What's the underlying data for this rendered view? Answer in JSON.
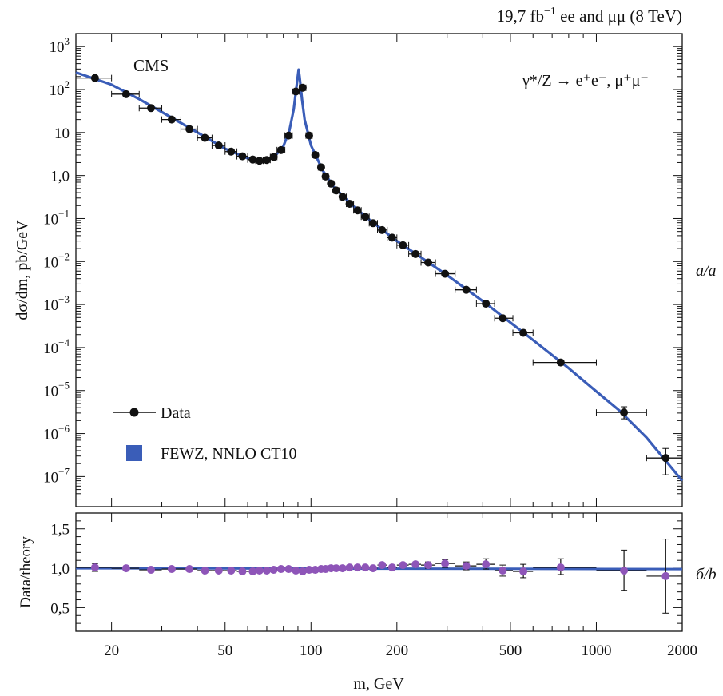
{
  "header": {
    "lumi_value": "19,7 fb",
    "lumi_exp": "−1",
    "lumi_rest": " ee and μμ (8 TeV)"
  },
  "labels": {
    "experiment": "CMS",
    "process": "γ*/Z → e⁺e⁻, μ⁺μ⁻",
    "panel_a": "a/a",
    "panel_b": "б/b"
  },
  "legend": {
    "data_label": "Data",
    "theory_label": "FEWZ, NNLO CT10"
  },
  "colors": {
    "theory_line": "#3a5db8",
    "data_marker": "#111111",
    "ratio_marker": "#8e55b8",
    "frame": "#111111"
  },
  "chart_data": [
    {
      "type": "line",
      "panel": "top",
      "ylabel": "dσ/dm, pb/GeV",
      "x_scale": "log",
      "y_scale": "log",
      "xlim": [
        15,
        2000
      ],
      "ylim": [
        2e-08,
        2000
      ],
      "y_tick_labels": [
        {
          "v": 1000,
          "base": "10",
          "exp": "3"
        },
        {
          "v": 100,
          "base": "10",
          "exp": "2"
        },
        {
          "v": 10,
          "base": "10",
          "exp": ""
        },
        {
          "v": 1,
          "base": "1,0",
          "exp": ""
        },
        {
          "v": 0.1,
          "base": "10",
          "exp": "−1"
        },
        {
          "v": 0.01,
          "base": "10",
          "exp": "−2"
        },
        {
          "v": 0.001,
          "base": "10",
          "exp": "−3"
        },
        {
          "v": 0.0001,
          "base": "10",
          "exp": "−4"
        },
        {
          "v": 1e-05,
          "base": "10",
          "exp": "−5"
        },
        {
          "v": 1e-06,
          "base": "10",
          "exp": "−6"
        },
        {
          "v": 1e-07,
          "base": "10",
          "exp": "−7"
        }
      ],
      "series": [
        {
          "name": "Data",
          "points": [
            {
              "x": 17.5,
              "y": 185,
              "xlo": 15,
              "xhi": 20
            },
            {
              "x": 22.5,
              "y": 78,
              "xlo": 20,
              "xhi": 25
            },
            {
              "x": 27.5,
              "y": 37,
              "xlo": 25,
              "xhi": 30
            },
            {
              "x": 32.5,
              "y": 20,
              "xlo": 30,
              "xhi": 35
            },
            {
              "x": 37.5,
              "y": 12,
              "xlo": 35,
              "xhi": 40
            },
            {
              "x": 42.5,
              "y": 7.5,
              "xlo": 40,
              "xhi": 45
            },
            {
              "x": 47.5,
              "y": 5,
              "xlo": 45,
              "xhi": 50
            },
            {
              "x": 52.5,
              "y": 3.6,
              "xlo": 50,
              "xhi": 55
            },
            {
              "x": 57.5,
              "y": 2.8,
              "xlo": 55,
              "xhi": 60
            },
            {
              "x": 62.5,
              "y": 2.35,
              "xlo": 60,
              "xhi": 64
            },
            {
              "x": 66,
              "y": 2.2,
              "xlo": 64,
              "xhi": 68
            },
            {
              "x": 70,
              "y": 2.3,
              "xlo": 68,
              "xhi": 72
            },
            {
              "x": 74,
              "y": 2.7,
              "xlo": 72,
              "xhi": 76
            },
            {
              "x": 78.5,
              "y": 3.9,
              "xlo": 76,
              "xhi": 81
            },
            {
              "x": 83.5,
              "y": 8.5,
              "xlo": 81,
              "xhi": 86
            },
            {
              "x": 88.5,
              "y": 90,
              "xlo": 86,
              "xhi": 91
            },
            {
              "x": 93.5,
              "y": 110,
              "xlo": 91,
              "xhi": 96
            },
            {
              "x": 98.5,
              "y": 8.5,
              "xlo": 96,
              "xhi": 101
            },
            {
              "x": 103.5,
              "y": 3,
              "xlo": 101,
              "xhi": 106
            },
            {
              "x": 108.5,
              "y": 1.55,
              "xlo": 106,
              "xhi": 110
            },
            {
              "x": 112.5,
              "y": 0.95,
              "xlo": 110,
              "xhi": 115
            },
            {
              "x": 117.5,
              "y": 0.65,
              "xlo": 115,
              "xhi": 120
            },
            {
              "x": 122.5,
              "y": 0.45,
              "xlo": 120,
              "xhi": 126
            },
            {
              "x": 129,
              "y": 0.32,
              "xlo": 126,
              "xhi": 133
            },
            {
              "x": 136.5,
              "y": 0.22,
              "xlo": 133,
              "xhi": 141
            },
            {
              "x": 145.5,
              "y": 0.155,
              "xlo": 141,
              "xhi": 150
            },
            {
              "x": 155,
              "y": 0.11,
              "xlo": 150,
              "xhi": 160
            },
            {
              "x": 165,
              "y": 0.078,
              "xlo": 160,
              "xhi": 171
            },
            {
              "x": 177.5,
              "y": 0.054,
              "xlo": 171,
              "xhi": 185
            },
            {
              "x": 192.5,
              "y": 0.036,
              "xlo": 185,
              "xhi": 200
            },
            {
              "x": 210,
              "y": 0.024,
              "xlo": 200,
              "xhi": 220
            },
            {
              "x": 232.5,
              "y": 0.015,
              "xlo": 220,
              "xhi": 243
            },
            {
              "x": 257.5,
              "y": 0.0095,
              "xlo": 243,
              "xhi": 273
            },
            {
              "x": 295,
              "y": 0.0052,
              "xlo": 273,
              "xhi": 320
            },
            {
              "x": 350,
              "y": 0.0022,
              "xlo": 320,
              "xhi": 380
            },
            {
              "x": 410,
              "y": 0.00105,
              "xlo": 380,
              "xhi": 440
            },
            {
              "x": 470,
              "y": 0.00048,
              "xlo": 440,
              "xhi": 510
            },
            {
              "x": 555,
              "y": 0.00022,
              "xlo": 510,
              "xhi": 600
            },
            {
              "x": 750,
              "y": 4.5e-05,
              "xlo": 600,
              "xhi": 1000
            },
            {
              "x": 1250,
              "y": 3.1e-06,
              "xlo": 1000,
              "xhi": 1500,
              "ylo": 2.2e-06,
              "yhi": 4.2e-06
            },
            {
              "x": 1750,
              "y": 2.7e-07,
              "xlo": 1500,
              "xhi": 2000,
              "ylo": 1.1e-07,
              "yhi": 4.5e-07
            }
          ]
        },
        {
          "name": "FEWZ, NNLO CT10",
          "points": [
            {
              "x": 15,
              "y": 250
            },
            {
              "x": 20,
              "y": 130
            },
            {
              "x": 25,
              "y": 60
            },
            {
              "x": 30,
              "y": 30
            },
            {
              "x": 40,
              "y": 10
            },
            {
              "x": 50,
              "y": 4.2
            },
            {
              "x": 60,
              "y": 2.5
            },
            {
              "x": 65,
              "y": 2.2
            },
            {
              "x": 70,
              "y": 2.3
            },
            {
              "x": 75,
              "y": 2.9
            },
            {
              "x": 80,
              "y": 4.8
            },
            {
              "x": 84,
              "y": 11
            },
            {
              "x": 87,
              "y": 35
            },
            {
              "x": 89,
              "y": 120
            },
            {
              "x": 90.5,
              "y": 290
            },
            {
              "x": 91.2,
              "y": 200
            },
            {
              "x": 93,
              "y": 60
            },
            {
              "x": 95,
              "y": 20
            },
            {
              "x": 100,
              "y": 5
            },
            {
              "x": 110,
              "y": 1.3
            },
            {
              "x": 120,
              "y": 0.55
            },
            {
              "x": 140,
              "y": 0.2
            },
            {
              "x": 160,
              "y": 0.095
            },
            {
              "x": 200,
              "y": 0.03
            },
            {
              "x": 250,
              "y": 0.011
            },
            {
              "x": 300,
              "y": 0.0048
            },
            {
              "x": 400,
              "y": 0.0012
            },
            {
              "x": 500,
              "y": 0.00038
            },
            {
              "x": 600,
              "y": 0.00015
            },
            {
              "x": 800,
              "y": 3.3e-05
            },
            {
              "x": 1000,
              "y": 9.5e-06
            },
            {
              "x": 1200,
              "y": 3.5e-06
            },
            {
              "x": 1500,
              "y": 8e-07
            },
            {
              "x": 2000,
              "y": 8e-08
            }
          ]
        }
      ]
    },
    {
      "type": "scatter",
      "panel": "bottom",
      "ylabel": "Data/theory",
      "xlabel": "m, GeV",
      "x_scale": "log",
      "xlim": [
        15,
        2000
      ],
      "ylim": [
        0.2,
        1.7
      ],
      "x_tick_labels": [
        {
          "v": 20,
          "label": "20"
        },
        {
          "v": 50,
          "label": "50"
        },
        {
          "v": 100,
          "label": "100"
        },
        {
          "v": 200,
          "label": "200"
        },
        {
          "v": 500,
          "label": "500"
        },
        {
          "v": 1000,
          "label": "1000"
        },
        {
          "v": 2000,
          "label": "2000"
        }
      ],
      "y_tick_labels": [
        {
          "v": 0.5,
          "label": "0,5"
        },
        {
          "v": 1.0,
          "label": "1,0"
        },
        {
          "v": 1.5,
          "label": "1,5"
        }
      ],
      "reference_line": 1.0,
      "points": [
        {
          "x": 17.5,
          "y": 1.01,
          "xlo": 15,
          "xhi": 20,
          "ylo": 0.96,
          "yhi": 1.06
        },
        {
          "x": 22.5,
          "y": 1.0,
          "xlo": 20,
          "xhi": 25
        },
        {
          "x": 27.5,
          "y": 0.98,
          "xlo": 25,
          "xhi": 30
        },
        {
          "x": 32.5,
          "y": 0.99,
          "xlo": 30,
          "xhi": 35
        },
        {
          "x": 37.5,
          "y": 0.99,
          "xlo": 35,
          "xhi": 40
        },
        {
          "x": 42.5,
          "y": 0.97,
          "xlo": 40,
          "xhi": 45
        },
        {
          "x": 47.5,
          "y": 0.97,
          "xlo": 45,
          "xhi": 50
        },
        {
          "x": 52.5,
          "y": 0.97,
          "xlo": 50,
          "xhi": 55
        },
        {
          "x": 57.5,
          "y": 0.96,
          "xlo": 55,
          "xhi": 60
        },
        {
          "x": 62.5,
          "y": 0.96,
          "xlo": 60,
          "xhi": 64
        },
        {
          "x": 66,
          "y": 0.97,
          "xlo": 64,
          "xhi": 68
        },
        {
          "x": 70,
          "y": 0.97,
          "xlo": 68,
          "xhi": 72
        },
        {
          "x": 74,
          "y": 0.98,
          "xlo": 72,
          "xhi": 76
        },
        {
          "x": 78.5,
          "y": 0.99,
          "xlo": 76,
          "xhi": 81
        },
        {
          "x": 83.5,
          "y": 0.99,
          "xlo": 81,
          "xhi": 86
        },
        {
          "x": 88.5,
          "y": 0.97,
          "xlo": 86,
          "xhi": 91
        },
        {
          "x": 93.5,
          "y": 0.96,
          "xlo": 91,
          "xhi": 96
        },
        {
          "x": 98.5,
          "y": 0.98,
          "xlo": 96,
          "xhi": 101
        },
        {
          "x": 103.5,
          "y": 0.98,
          "xlo": 101,
          "xhi": 106
        },
        {
          "x": 108.5,
          "y": 0.99,
          "xlo": 106,
          "xhi": 110
        },
        {
          "x": 112.5,
          "y": 0.99,
          "xlo": 110,
          "xhi": 115
        },
        {
          "x": 117.5,
          "y": 1.0,
          "xlo": 115,
          "xhi": 120
        },
        {
          "x": 122.5,
          "y": 1.0,
          "xlo": 120,
          "xhi": 126
        },
        {
          "x": 129,
          "y": 1.0,
          "xlo": 126,
          "xhi": 133
        },
        {
          "x": 136.5,
          "y": 1.01,
          "xlo": 133,
          "xhi": 141
        },
        {
          "x": 145.5,
          "y": 1.01,
          "xlo": 141,
          "xhi": 150
        },
        {
          "x": 155,
          "y": 1.01,
          "xlo": 150,
          "xhi": 160
        },
        {
          "x": 165,
          "y": 1.0,
          "xlo": 160,
          "xhi": 171
        },
        {
          "x": 177.5,
          "y": 1.04,
          "xlo": 171,
          "xhi": 185
        },
        {
          "x": 192.5,
          "y": 1.01,
          "xlo": 185,
          "xhi": 200
        },
        {
          "x": 210,
          "y": 1.04,
          "xlo": 200,
          "xhi": 220
        },
        {
          "x": 232.5,
          "y": 1.05,
          "xlo": 220,
          "xhi": 243
        },
        {
          "x": 257.5,
          "y": 1.04,
          "xlo": 243,
          "xhi": 273,
          "ylo": 1.0,
          "yhi": 1.08
        },
        {
          "x": 295,
          "y": 1.06,
          "xlo": 273,
          "xhi": 320,
          "ylo": 1.01,
          "yhi": 1.11
        },
        {
          "x": 350,
          "y": 1.03,
          "xlo": 320,
          "xhi": 380,
          "ylo": 0.98,
          "yhi": 1.08
        },
        {
          "x": 410,
          "y": 1.05,
          "xlo": 380,
          "xhi": 440,
          "ylo": 0.99,
          "yhi": 1.12
        },
        {
          "x": 470,
          "y": 0.97,
          "xlo": 440,
          "xhi": 510,
          "ylo": 0.9,
          "yhi": 1.04
        },
        {
          "x": 555,
          "y": 0.96,
          "xlo": 510,
          "xhi": 600,
          "ylo": 0.88,
          "yhi": 1.05
        },
        {
          "x": 750,
          "y": 1.01,
          "xlo": 600,
          "xhi": 1000,
          "ylo": 0.92,
          "yhi": 1.12
        },
        {
          "x": 1250,
          "y": 0.97,
          "xlo": 1000,
          "xhi": 1500,
          "ylo": 0.72,
          "yhi": 1.23
        },
        {
          "x": 1750,
          "y": 0.9,
          "xlo": 1500,
          "xhi": 2000,
          "ylo": 0.43,
          "yhi": 1.37
        }
      ]
    }
  ]
}
